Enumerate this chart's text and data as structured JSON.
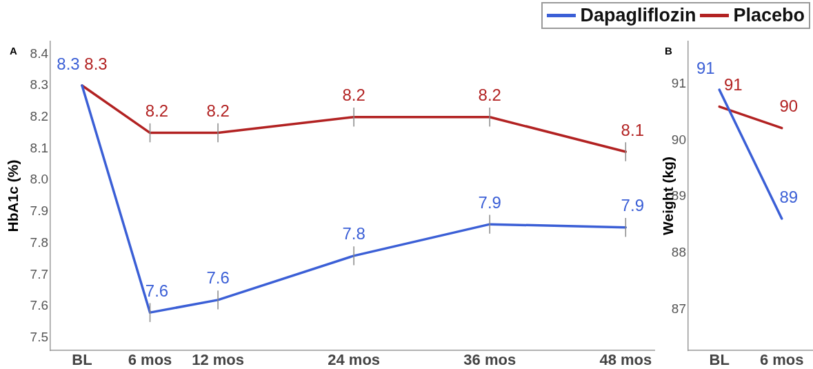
{
  "chart_data": [
    {
      "type": "line",
      "ylabel": "HbA1c (%)",
      "annotations": [
        "A"
      ],
      "x": [
        0,
        6,
        12,
        24,
        36,
        48
      ],
      "xlim": [
        -2.8,
        50.6
      ],
      "xticks": [
        {
          "value": 0,
          "label": "BL"
        },
        {
          "value": 6,
          "label": "6 mos"
        },
        {
          "value": 12,
          "label": "12 mos"
        },
        {
          "value": 24,
          "label": "24 mos"
        },
        {
          "value": 36,
          "label": "36 mos"
        },
        {
          "value": 48,
          "label": "48 mos"
        }
      ],
      "ylim": [
        7.46,
        8.44
      ],
      "yticks": [
        7.5,
        7.6,
        7.7,
        7.8,
        7.9,
        {
          "value": 8,
          "label": "8.0"
        },
        8.1,
        8.2,
        8.3,
        8.4
      ],
      "grid": false,
      "legend": "top right",
      "marker": "none",
      "line_style": "solid",
      "series": [
        {
          "name": "Dapagliflozin",
          "color": "#3b5fd6",
          "values": [
            8.3,
            7.58,
            7.62,
            7.76,
            7.86,
            7.85
          ],
          "value_labels": [
            "8.3",
            "7.6",
            "7.6",
            "7.8",
            "7.9",
            "7.9"
          ],
          "errors": [
            null,
            0.03,
            0.03,
            0.03,
            0.03,
            0.03
          ]
        },
        {
          "name": "Placebo",
          "color": "#b22222",
          "values": [
            8.3,
            8.15,
            8.15,
            8.2,
            8.2,
            8.09
          ],
          "value_labels": [
            "8.3",
            "8.2",
            "8.2",
            "8.2",
            "8.2",
            "8.1"
          ],
          "errors": [
            null,
            0.03,
            0.03,
            0.03,
            0.03,
            0.03
          ]
        }
      ]
    },
    {
      "type": "line",
      "ylabel": "Weight (kg)",
      "annotations": [
        "B"
      ],
      "categories": [
        "BL",
        "6 mos"
      ],
      "ylim": [
        86.27,
        91.76
      ],
      "yticks": [
        87,
        88,
        89,
        90,
        91
      ],
      "grid": false,
      "marker": "none",
      "line_style": "solid",
      "series": [
        {
          "color": "#3b5fd6",
          "values": [
            90.9,
            88.61
          ],
          "value_labels": [
            "91",
            "89"
          ]
        },
        {
          "color": "#b22222",
          "values": [
            90.6,
            90.22
          ],
          "value_labels": [
            "91",
            "90"
          ]
        }
      ]
    }
  ]
}
